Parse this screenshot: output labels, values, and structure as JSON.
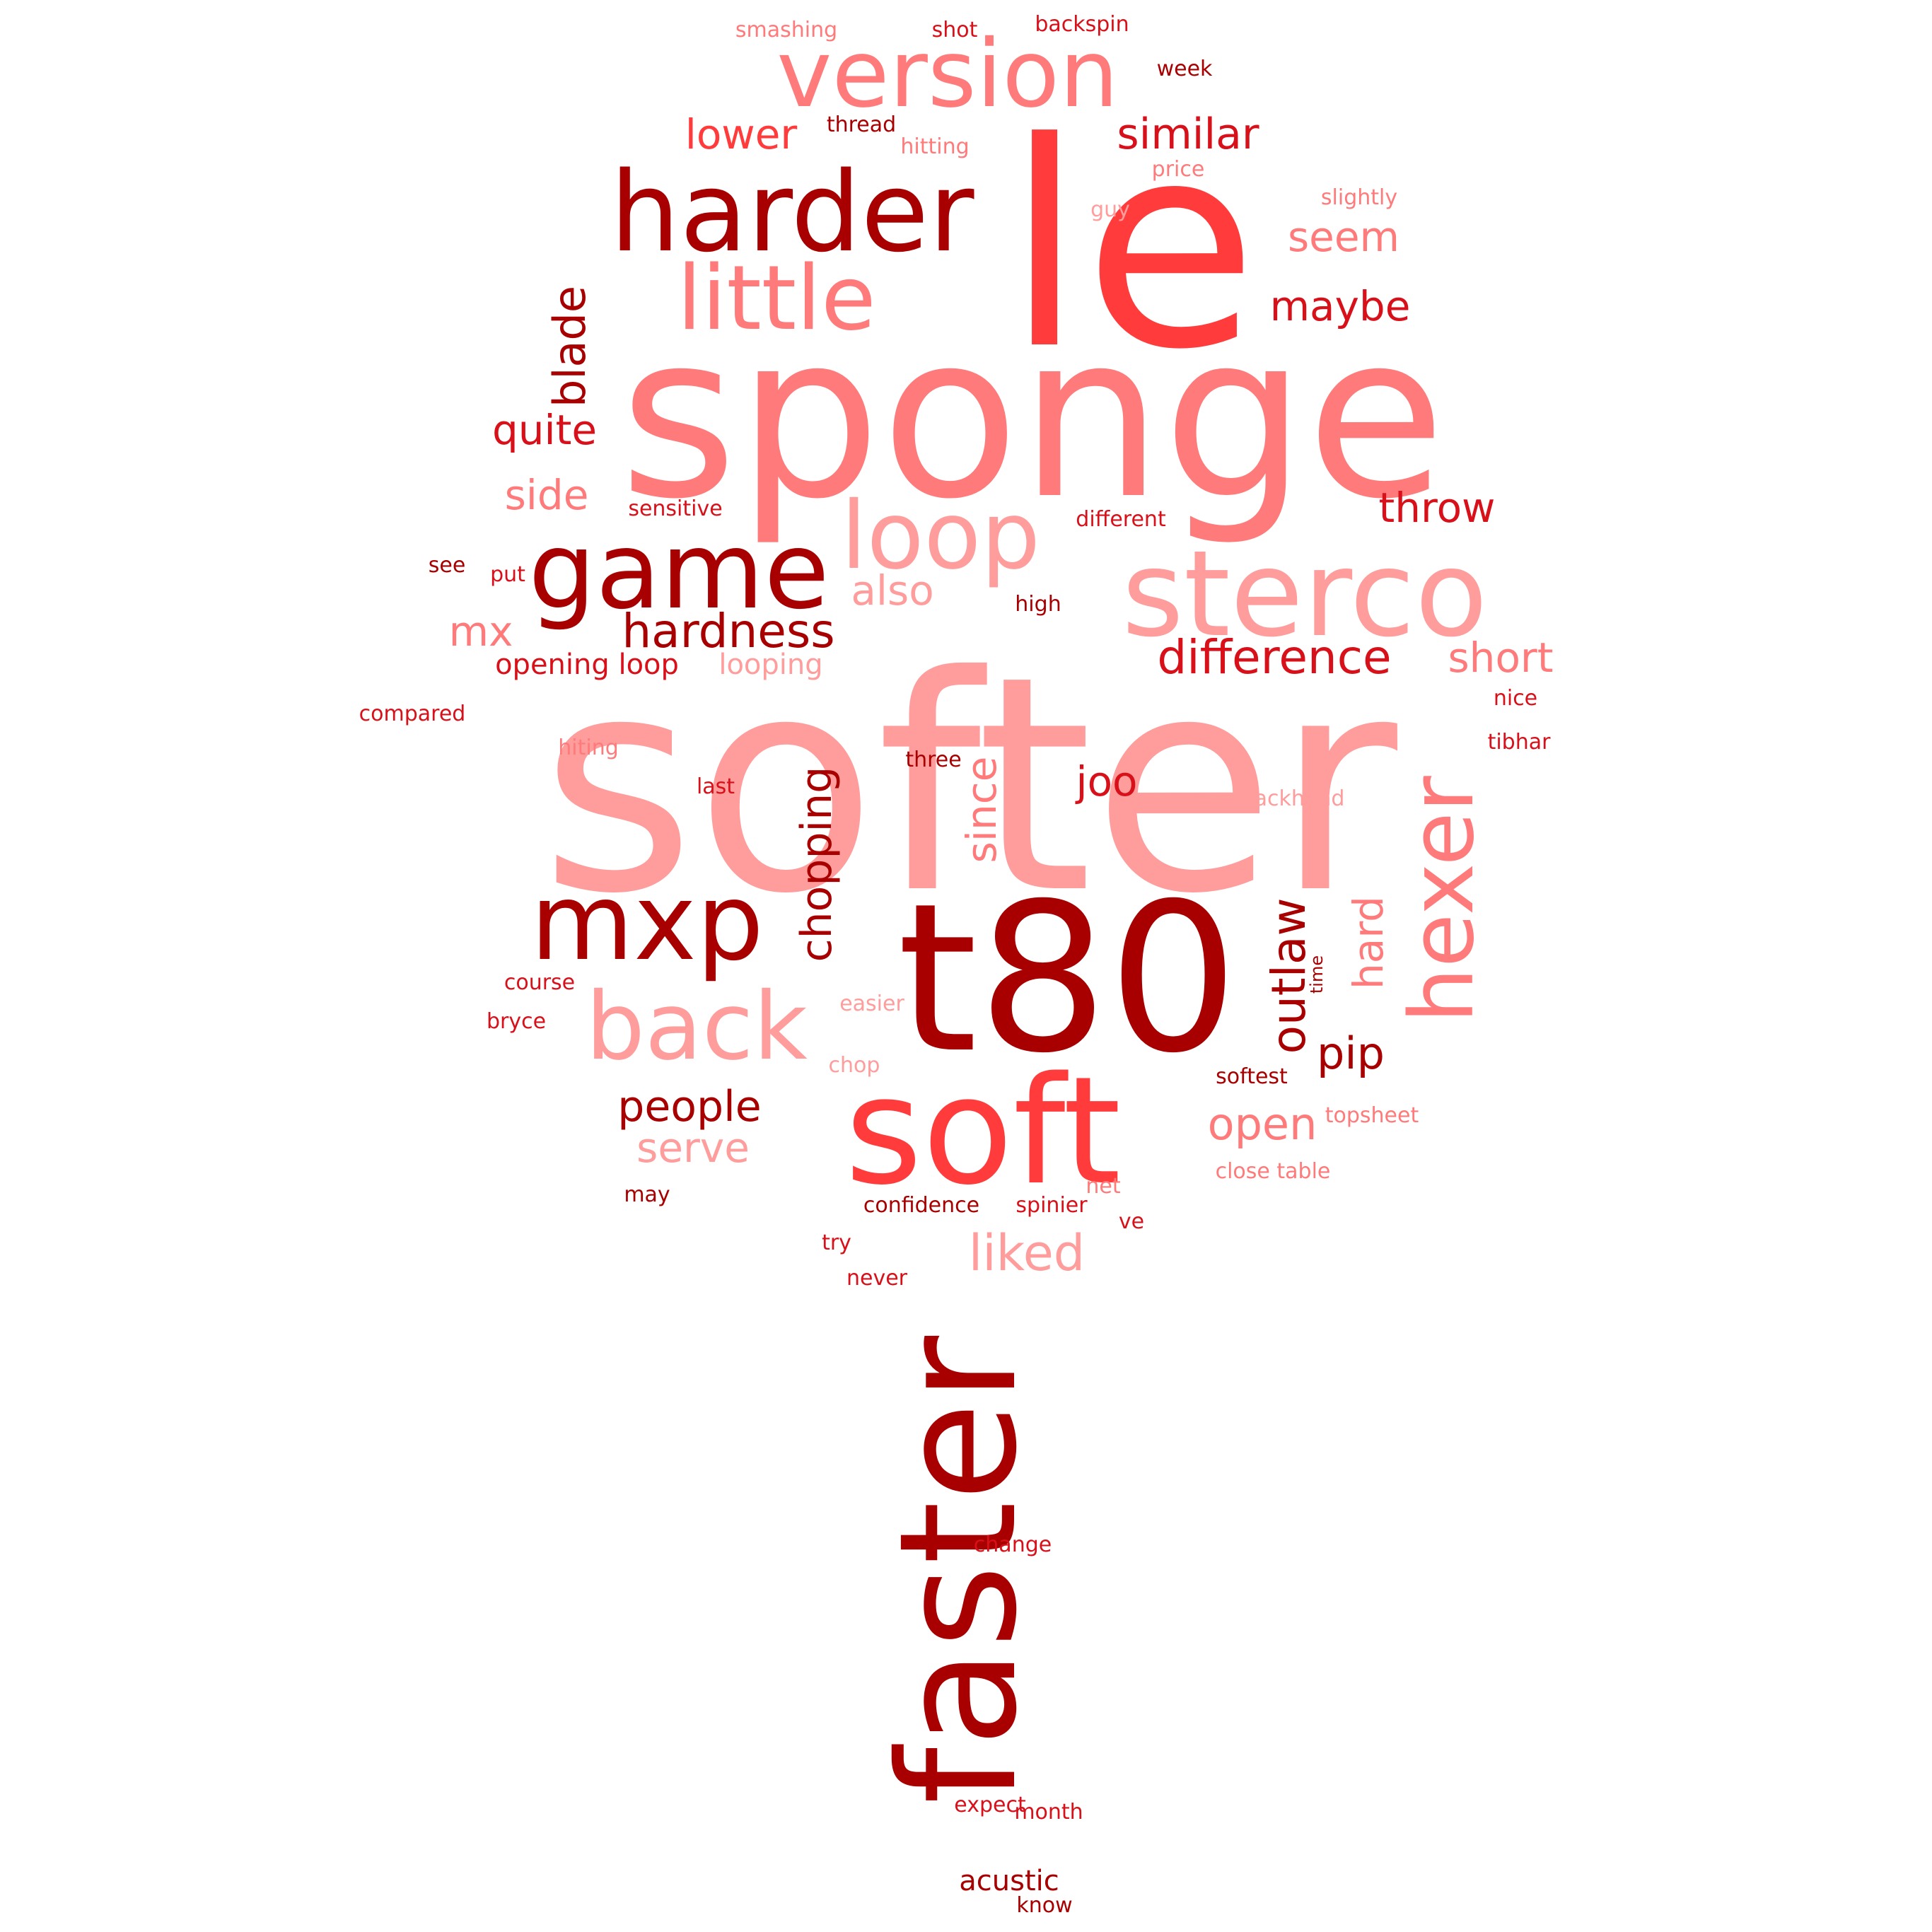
{
  "palette": {
    "dark": "#a80000",
    "medium": "#d8101a",
    "bright": "#ff3b3b",
    "light": "#ff7a7a",
    "pale": "#ff9c9c"
  },
  "words": [
    {
      "text": "softer",
      "color": "pale"
    },
    {
      "text": "sponge",
      "color": "light"
    },
    {
      "text": "le",
      "color": "bright"
    },
    {
      "text": "t80",
      "color": "dark"
    },
    {
      "text": "faster",
      "color": "dark"
    },
    {
      "text": "soft",
      "color": "bright"
    },
    {
      "text": "sterco",
      "color": "pale"
    },
    {
      "text": "harder",
      "color": "dark"
    },
    {
      "text": "version",
      "color": "light"
    },
    {
      "text": "game",
      "color": "dark"
    },
    {
      "text": "little",
      "color": "light"
    },
    {
      "text": "mxp",
      "color": "dark"
    },
    {
      "text": "loop",
      "color": "pale"
    },
    {
      "text": "back",
      "color": "pale"
    },
    {
      "text": "hexer",
      "color": "light"
    },
    {
      "text": "hardness",
      "color": "dark"
    },
    {
      "text": "difference",
      "color": "medium"
    },
    {
      "text": "blade",
      "color": "dark"
    },
    {
      "text": "outlaw",
      "color": "dark"
    },
    {
      "text": "chopping",
      "color": "dark"
    },
    {
      "text": "similar",
      "color": "medium"
    },
    {
      "text": "lower",
      "color": "bright"
    },
    {
      "text": "seem",
      "color": "light"
    },
    {
      "text": "maybe",
      "color": "medium"
    },
    {
      "text": "quite",
      "color": "medium"
    },
    {
      "text": "throw",
      "color": "medium"
    },
    {
      "text": "side",
      "color": "light"
    },
    {
      "text": "also",
      "color": "pale"
    },
    {
      "text": "short",
      "color": "light"
    },
    {
      "text": "since",
      "color": "light"
    },
    {
      "text": "joo",
      "color": "medium"
    },
    {
      "text": "hard",
      "color": "light"
    },
    {
      "text": "mx",
      "color": "light"
    },
    {
      "text": "pip",
      "color": "dark"
    },
    {
      "text": "people",
      "color": "dark"
    },
    {
      "text": "open",
      "color": "light"
    },
    {
      "text": "serve",
      "color": "pale"
    },
    {
      "text": "liked",
      "color": "pale"
    },
    {
      "text": "opening loop",
      "color": "medium"
    },
    {
      "text": "looping",
      "color": "pale"
    },
    {
      "text": "smashing",
      "color": "light"
    },
    {
      "text": "shot",
      "color": "medium"
    },
    {
      "text": "backspin",
      "color": "medium"
    },
    {
      "text": "week",
      "color": "dark"
    },
    {
      "text": "thread",
      "color": "dark"
    },
    {
      "text": "hitting",
      "color": "light"
    },
    {
      "text": "price",
      "color": "light"
    },
    {
      "text": "slightly",
      "color": "light"
    },
    {
      "text": "guy",
      "color": "pale"
    },
    {
      "text": "sensitive",
      "color": "medium"
    },
    {
      "text": "different",
      "color": "medium"
    },
    {
      "text": "see",
      "color": "dark"
    },
    {
      "text": "put",
      "color": "medium"
    },
    {
      "text": "high",
      "color": "dark"
    },
    {
      "text": "compared",
      "color": "medium"
    },
    {
      "text": "nice",
      "color": "medium"
    },
    {
      "text": "hiting",
      "color": "light"
    },
    {
      "text": "three",
      "color": "dark"
    },
    {
      "text": "tibhar",
      "color": "medium"
    },
    {
      "text": "last",
      "color": "medium"
    },
    {
      "text": "backhand",
      "color": "pale"
    },
    {
      "text": "course",
      "color": "medium"
    },
    {
      "text": "easier",
      "color": "pale"
    },
    {
      "text": "time",
      "color": "dark"
    },
    {
      "text": "bryce",
      "color": "medium"
    },
    {
      "text": "chop",
      "color": "pale"
    },
    {
      "text": "softest",
      "color": "dark"
    },
    {
      "text": "topsheet",
      "color": "light"
    },
    {
      "text": "close table",
      "color": "light"
    },
    {
      "text": "net",
      "color": "light"
    },
    {
      "text": "may",
      "color": "dark"
    },
    {
      "text": "confidence",
      "color": "dark"
    },
    {
      "text": "spinier",
      "color": "medium"
    },
    {
      "text": "ve",
      "color": "medium"
    },
    {
      "text": "try",
      "color": "medium"
    },
    {
      "text": "never",
      "color": "medium"
    },
    {
      "text": "change",
      "color": "medium"
    },
    {
      "text": "expect",
      "color": "medium"
    },
    {
      "text": "month",
      "color": "medium"
    },
    {
      "text": "acustic",
      "color": "dark"
    },
    {
      "text": "know",
      "color": "dark"
    }
  ]
}
